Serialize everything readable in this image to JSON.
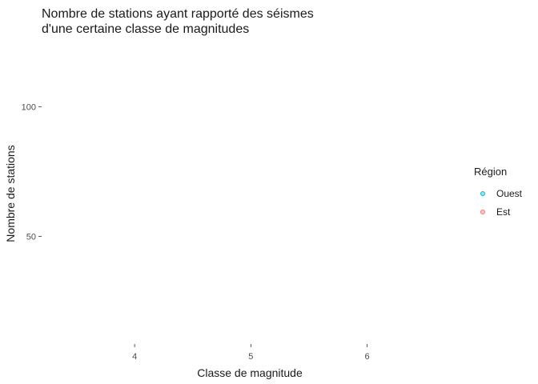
{
  "chart_data": {
    "type": "scatter",
    "title": "Nombre de stations ayant rapporté des séismes\nd'une certaine classe de magnitudes",
    "xlabel": "Classe de magnitude",
    "ylabel": "Nombre de stations",
    "x_ticks": [
      4,
      5,
      6
    ],
    "y_ticks": [
      50,
      100
    ],
    "xlim": [
      3.2,
      6.85
    ],
    "ylim": [
      8.5,
      122
    ],
    "grid": false,
    "legend": {
      "title": "Région",
      "position": "right",
      "entries": [
        {
          "label": "Ouest",
          "color": "#00BFC4"
        },
        {
          "label": "Est",
          "color": "#F8766D"
        }
      ]
    },
    "series": [
      {
        "name": "Ouest",
        "color": "#00BFC4",
        "points": []
      },
      {
        "name": "Est",
        "color": "#F8766D",
        "points": []
      }
    ]
  }
}
